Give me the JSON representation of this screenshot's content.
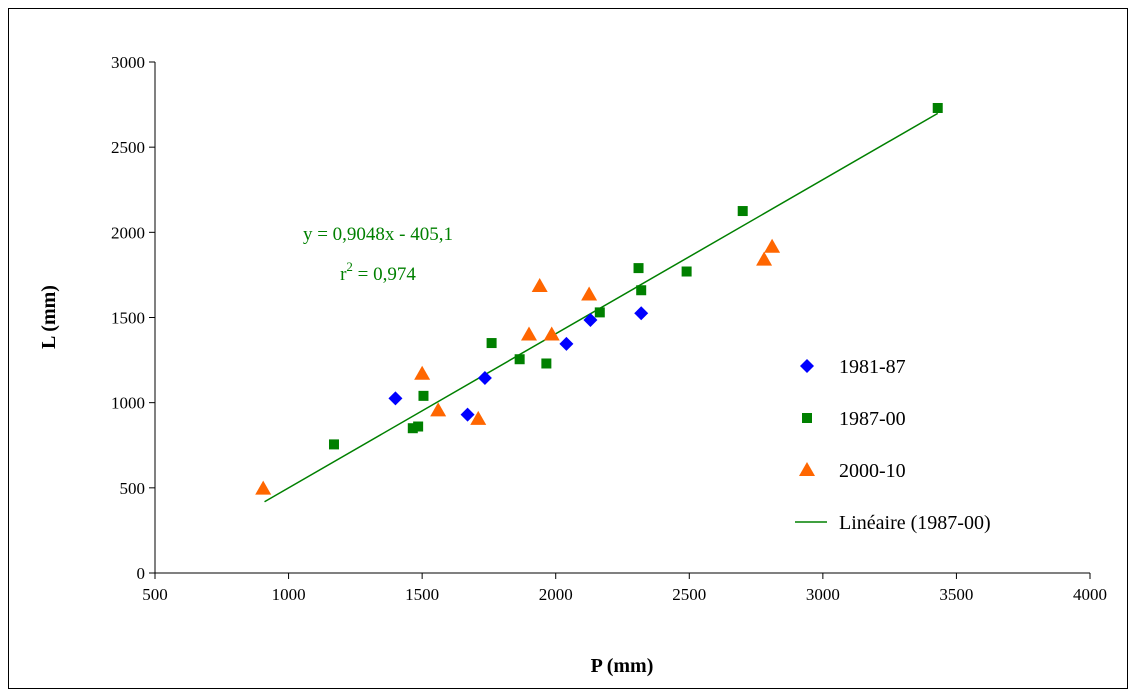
{
  "chart_data": {
    "type": "scatter",
    "title": "",
    "xlabel": "P (mm)",
    "ylabel": "L (mm)",
    "xlim": [
      500,
      4000
    ],
    "ylim": [
      0,
      3000
    ],
    "xticks": [
      500,
      1000,
      1500,
      2000,
      2500,
      3000,
      3500,
      4000
    ],
    "yticks": [
      0,
      500,
      1000,
      1500,
      2000,
      2500,
      3000
    ],
    "grid": false,
    "legend_position": "right",
    "series": [
      {
        "name": "1981-87",
        "marker": "diamond",
        "color": "#0000ff",
        "points": [
          [
            1400,
            1025
          ],
          [
            1670,
            930
          ],
          [
            1735,
            1145
          ],
          [
            2040,
            1345
          ],
          [
            2130,
            1485
          ],
          [
            2320,
            1525
          ]
        ]
      },
      {
        "name": "1987-00",
        "marker": "square",
        "color": "#008000",
        "points": [
          [
            1170,
            755
          ],
          [
            1465,
            850
          ],
          [
            1485,
            860
          ],
          [
            1505,
            1040
          ],
          [
            1760,
            1350
          ],
          [
            1865,
            1255
          ],
          [
            1965,
            1230
          ],
          [
            2165,
            1530
          ],
          [
            2310,
            1790
          ],
          [
            2320,
            1660
          ],
          [
            2490,
            1770
          ],
          [
            2700,
            2125
          ],
          [
            3430,
            2730
          ]
        ]
      },
      {
        "name": "2000-10",
        "marker": "triangle",
        "color": "#ff6600",
        "points": [
          [
            905,
            495
          ],
          [
            1500,
            1170
          ],
          [
            1560,
            955
          ],
          [
            1710,
            905
          ],
          [
            1900,
            1400
          ],
          [
            1940,
            1685
          ],
          [
            1985,
            1400
          ],
          [
            2125,
            1635
          ],
          [
            2780,
            1840
          ],
          [
            2810,
            1915
          ]
        ]
      }
    ],
    "trendline": {
      "name": "Linéaire (1987-00)",
      "color": "#008000",
      "slope": 0.9048,
      "intercept": -405.1,
      "x_range": [
        910,
        3430
      ],
      "equation": "y = 0,9048x - 405,1",
      "r2_base": "r",
      "r2_sup": "2",
      "r2_value": " = 0,974"
    }
  }
}
